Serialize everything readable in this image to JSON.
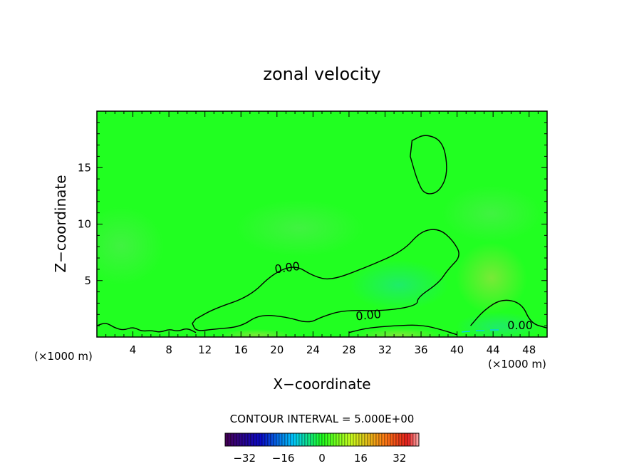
{
  "chart_data": {
    "type": "heatmap",
    "title": "zonal velocity",
    "xlabel": "X−coordinate",
    "ylabel": "Z−coordinate",
    "x_unit_left": "(×1000 m)",
    "x_unit_right": "(×1000 m)",
    "xlim": [
      0,
      50
    ],
    "ylim": [
      0,
      20
    ],
    "x_ticks": [
      4,
      8,
      12,
      16,
      20,
      24,
      28,
      32,
      36,
      40,
      44,
      48
    ],
    "x_tick_labels": [
      "4",
      "8",
      "12",
      "16",
      "20",
      "24",
      "28",
      "32",
      "36",
      "40",
      "44",
      "48"
    ],
    "y_ticks": [
      5,
      10,
      15
    ],
    "y_tick_labels": [
      "5",
      "10",
      "15"
    ],
    "contour_interval_text": "CONTOUR INTERVAL = 5.000E+00",
    "contour_label": "0.00",
    "zero_contours": [
      {
        "name": "upper-cell",
        "points": [
          [
            35,
            17.4
          ],
          [
            36.5,
            18
          ],
          [
            38.5,
            17.3
          ],
          [
            39,
            14.5
          ],
          [
            38,
            12.8
          ],
          [
            36.4,
            12.6
          ],
          [
            35.6,
            13.8
          ],
          [
            34.8,
            16
          ]
        ]
      },
      {
        "name": "main-cell",
        "points": [
          [
            11,
            1.6
          ],
          [
            13,
            2.5
          ],
          [
            17,
            3.6
          ],
          [
            19.5,
            5.6
          ],
          [
            22,
            6.4
          ],
          [
            24,
            5.4
          ],
          [
            26,
            5
          ],
          [
            30,
            6.2
          ],
          [
            34,
            7.6
          ],
          [
            36,
            9.4
          ],
          [
            38,
            9.6
          ],
          [
            39.5,
            8.6
          ],
          [
            40.5,
            7.2
          ],
          [
            39,
            6
          ],
          [
            38,
            4.8
          ],
          [
            35.6,
            3.5
          ],
          [
            35.6,
            2.8
          ],
          [
            32,
            2.3
          ],
          [
            27.5,
            2.4
          ],
          [
            25,
            1.8
          ],
          [
            23.5,
            1.2
          ],
          [
            21,
            1.8
          ],
          [
            18,
            2
          ],
          [
            16,
            0.9
          ],
          [
            13,
            0.7
          ],
          [
            11,
            0.5
          ],
          [
            10.6,
            1.2
          ]
        ]
      },
      {
        "name": "low-ripples",
        "points": [
          [
            0,
            1
          ],
          [
            1,
            1.3
          ],
          [
            2,
            0.8
          ],
          [
            3,
            0.6
          ],
          [
            4,
            0.9
          ],
          [
            5,
            0.5
          ],
          [
            6,
            0.6
          ],
          [
            7,
            0.4
          ],
          [
            8,
            0.7
          ],
          [
            9,
            0.5
          ],
          [
            10,
            0.8
          ],
          [
            11,
            0.4
          ]
        ]
      },
      {
        "name": "ground-cell",
        "points": [
          [
            28,
            0.4
          ],
          [
            30,
            0.8
          ],
          [
            33,
            1
          ],
          [
            36,
            1.1
          ],
          [
            38.5,
            0.6
          ],
          [
            40,
            0.2
          ]
        ]
      },
      {
        "name": "right-cell",
        "points": [
          [
            41.5,
            1
          ],
          [
            43,
            2.4
          ],
          [
            45,
            3.4
          ],
          [
            47.2,
            3
          ],
          [
            48.2,
            1.2
          ],
          [
            50,
            0.8
          ]
        ]
      }
    ],
    "colorbar": {
      "range": [
        -40,
        40
      ],
      "ticks": [
        -32,
        -16,
        0,
        16,
        32
      ],
      "tick_labels": [
        "−32",
        "−16",
        "0",
        "16",
        "32"
      ]
    },
    "colors": {
      "field": "#21ff21",
      "field_light": "#3cf53a",
      "field_cyan": "#1ee486",
      "field_yellow": "#8ee63e",
      "contour": "#000000",
      "negative_contour": "#00c8ff"
    }
  }
}
